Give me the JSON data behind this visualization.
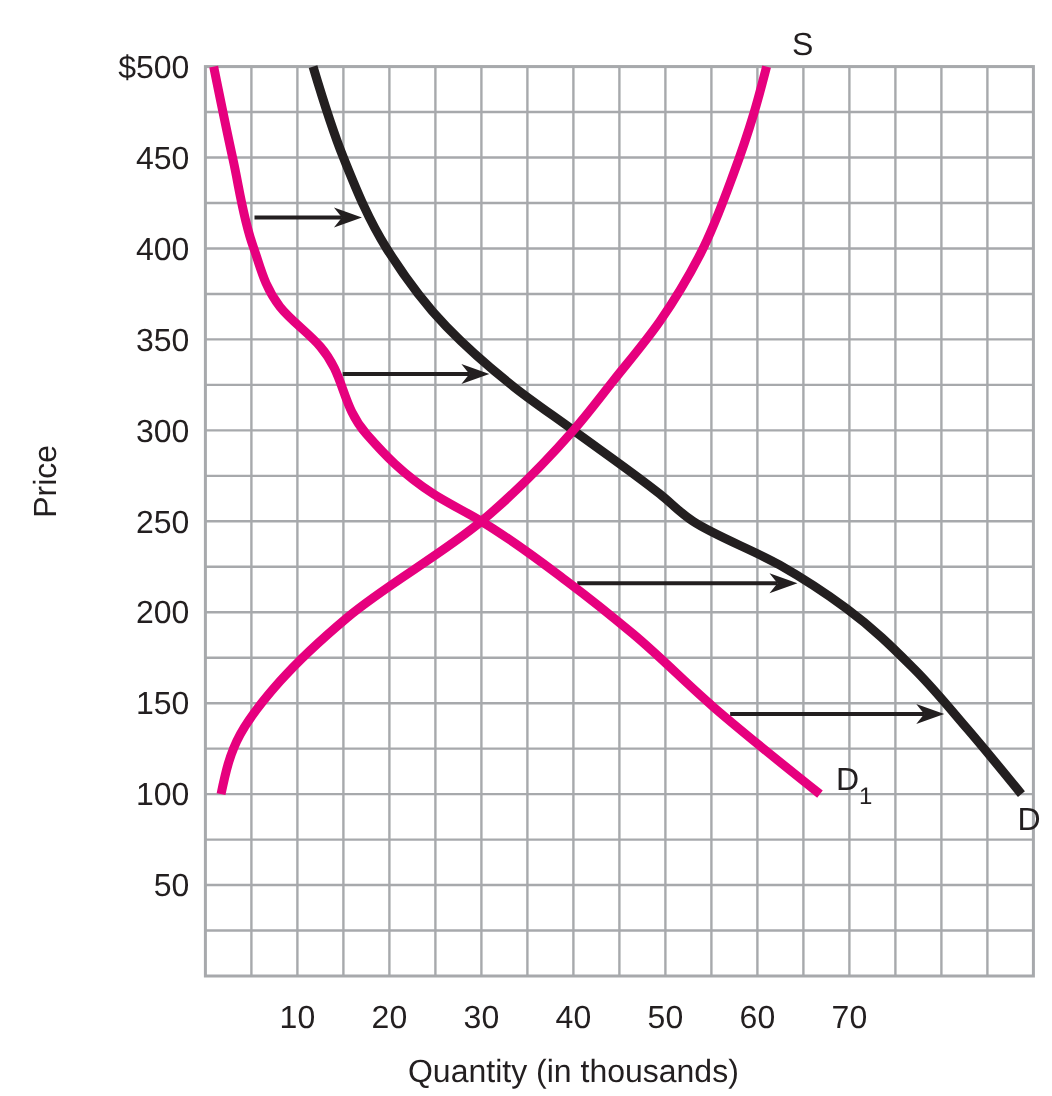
{
  "chart_data": {
    "type": "line",
    "xlabel": "Quantity (in thousands)",
    "ylabel": "Price",
    "xlim": [
      0,
      90
    ],
    "ylim": [
      0,
      500
    ],
    "xticks": [
      {
        "value": 5,
        "label": null
      },
      10,
      {
        "value": 15,
        "label": null
      },
      20,
      {
        "value": 25,
        "label": null
      },
      30,
      {
        "value": 35,
        "label": null
      },
      40,
      {
        "value": 45,
        "label": null
      },
      50,
      {
        "value": 55,
        "label": null
      },
      60,
      {
        "value": 65,
        "label": null
      },
      70,
      {
        "value": 75,
        "label": null
      },
      {
        "value": 80,
        "label": null
      },
      {
        "value": 85,
        "label": null
      }
    ],
    "yticks": [
      {
        "value": 25,
        "label": null
      },
      50,
      {
        "value": 75,
        "label": null
      },
      100,
      {
        "value": 125,
        "label": null
      },
      150,
      {
        "value": 175,
        "label": null
      },
      200,
      {
        "value": 225,
        "label": null
      },
      250,
      {
        "value": 275,
        "label": null
      },
      300,
      {
        "value": 325,
        "label": null
      },
      350,
      {
        "value": 375,
        "label": null
      },
      400,
      {
        "value": 425,
        "label": null
      },
      450,
      {
        "value": 475,
        "label": null
      },
      {
        "value": 500,
        "label": "$500"
      }
    ],
    "grid": true,
    "marker": "none",
    "line_style": "solid",
    "series": [
      {
        "name": "D",
        "color": "#231f20",
        "x": [
          11.7,
          15,
          19.7,
          26.2,
          33.5,
          40,
          49.4,
          53,
          62.4,
          69.7,
          77,
          82.8,
          88.7
        ],
        "values": [
          500,
          450,
          400,
          357,
          324,
          300,
          265,
          250,
          226,
          202,
          169,
          136,
          100
        ]
      },
      {
        "name": "S",
        "color": "#e6007e",
        "x": [
          1.7,
          3.8,
          8.1,
          15.4,
          30,
          40,
          44.3,
          49.4,
          53.8,
          57.4,
          59.6,
          61
        ],
        "values": [
          100,
          133,
          162,
          197,
          250,
          300,
          327,
          360,
          397,
          441,
          474,
          500
        ]
      },
      {
        "name": "D$_{1}$",
        "color": "#e6007e",
        "x": [
          0.9,
          3,
          5.2,
          8.1,
          12.5,
          17.5,
          24.8,
          30,
          39.3,
          46.5,
          55.2,
          66.8
        ],
        "values": [
          500,
          449,
          401,
          368,
          346,
          298,
          265,
          250,
          217,
          188,
          148,
          100
        ]
      }
    ]
  }
}
